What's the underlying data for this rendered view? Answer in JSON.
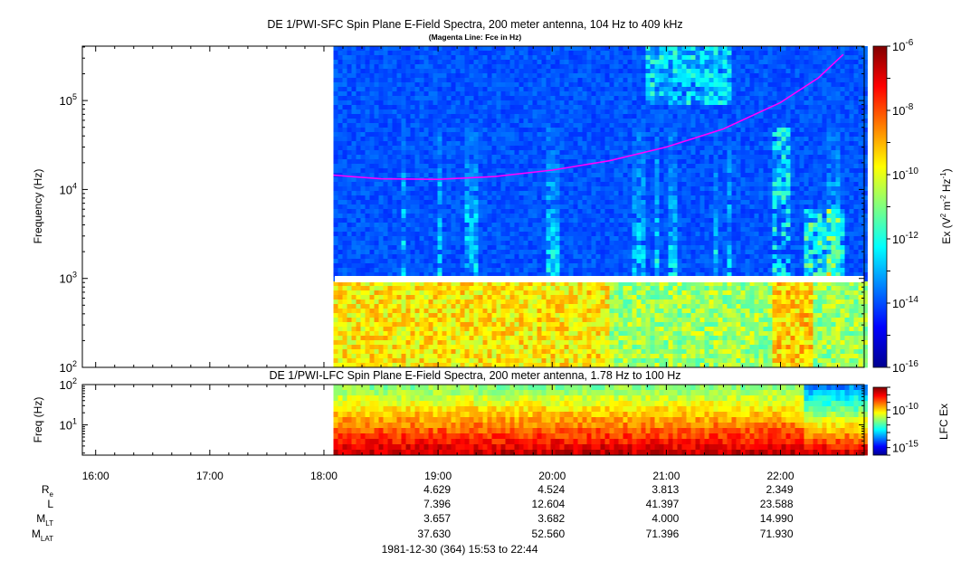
{
  "chart_data": [
    {
      "type": "heatmap",
      "title": "DE 1/PWI-SFC  Spin Plane E-Field Spectra, 200 meter antenna, 104 Hz to 409 kHz",
      "subtitle": "(Magenta Line: Fce in Hz)",
      "ylabel": "Frequency (Hz)",
      "yscale": "log",
      "ylim": [
        100,
        409000
      ],
      "yticks": [
        {
          "value": 100,
          "base": "10",
          "exp": "2"
        },
        {
          "value": 1000,
          "base": "10",
          "exp": "3"
        },
        {
          "value": 10000,
          "base": "10",
          "exp": "4"
        },
        {
          "value": 100000,
          "base": "10",
          "exp": "5"
        }
      ],
      "xlim": [
        "15:53",
        "22:44"
      ],
      "data_start": "18:05",
      "data_end": "22:44",
      "data_gap_hz": [
        870,
        1000
      ],
      "colorbar": {
        "label": "Ex (V² m⁻² Hz⁻¹)",
        "label_parts": {
          "a": "Ex (V",
          "b": "2",
          "c": " m",
          "d": "-2",
          "e": " Hz",
          "f": "-1",
          "g": ")"
        },
        "scale": "log",
        "range": [
          1e-16,
          1e-06
        ],
        "ticks": [
          {
            "value": 1e-06,
            "base": "10",
            "exp": "-6"
          },
          {
            "value": 1e-08,
            "base": "10",
            "exp": "-8"
          },
          {
            "value": 1e-10,
            "base": "10",
            "exp": "-10"
          },
          {
            "value": 1e-12,
            "base": "10",
            "exp": "-12"
          },
          {
            "value": 1e-14,
            "base": "10",
            "exp": "-14"
          },
          {
            "value": 1e-16,
            "base": "10",
            "exp": "-16"
          }
        ]
      },
      "fce_line": {
        "color": "#ff00ff",
        "points": [
          {
            "t": "18:05",
            "f": 14500
          },
          {
            "t": "18:30",
            "f": 13200
          },
          {
            "t": "19:00",
            "f": 13000
          },
          {
            "t": "19:30",
            "f": 14000
          },
          {
            "t": "20:00",
            "f": 16500
          },
          {
            "t": "20:30",
            "f": 21000
          },
          {
            "t": "21:00",
            "f": 30000
          },
          {
            "t": "21:30",
            "f": 48000
          },
          {
            "t": "22:00",
            "f": 95000
          },
          {
            "t": "22:20",
            "f": 180000
          },
          {
            "t": "22:33",
            "f": 330000
          }
        ]
      }
    },
    {
      "type": "heatmap",
      "title": "DE 1/PWI-LFC  Spin Plane E-Field Spectra, 200 meter antenna, 1.78 Hz to 100 Hz",
      "ylabel": "Freq (Hz)",
      "yscale": "log",
      "ylim": [
        1.78,
        100
      ],
      "yticks": [
        {
          "value": 10,
          "base": "10",
          "exp": "1"
        },
        {
          "value": 100,
          "base": "10",
          "exp": "2"
        }
      ],
      "xlim": [
        "15:53",
        "22:44"
      ],
      "data_start": "18:05",
      "data_end": "22:44",
      "colorbar": {
        "label": "LFC Ex",
        "scale": "log",
        "range": [
          1e-16,
          1e-07
        ],
        "ticks": [
          {
            "value": 1e-10,
            "base": "10",
            "exp": "-10"
          },
          {
            "value": 1e-15,
            "base": "10",
            "exp": "-15"
          }
        ]
      }
    }
  ],
  "time_axis": {
    "ticks": [
      {
        "t": "16:00",
        "label": "16:00"
      },
      {
        "t": "17:00",
        "label": "17:00"
      },
      {
        "t": "18:00",
        "label": "18:00"
      },
      {
        "t": "19:00",
        "label": "19:00"
      },
      {
        "t": "20:00",
        "label": "20:00"
      },
      {
        "t": "21:00",
        "label": "21:00"
      },
      {
        "t": "22:00",
        "label": "22:00"
      }
    ]
  },
  "ephemeris": {
    "rows": [
      {
        "name": "R",
        "sub": "e",
        "values": [
          "4.629",
          "4.524",
          "3.813",
          "2.349"
        ]
      },
      {
        "name": "L",
        "sub": "",
        "values": [
          "7.396",
          "12.604",
          "41.397",
          "23.588"
        ]
      },
      {
        "name": "M",
        "sub": "LT",
        "values": [
          "3.657",
          "3.682",
          "4.000",
          "14.990"
        ]
      },
      {
        "name": "M",
        "sub": "LAT",
        "values": [
          "37.630",
          "52.560",
          "71.396",
          "71.930"
        ]
      }
    ],
    "at": [
      "19:00",
      "20:00",
      "21:00",
      "22:00"
    ]
  },
  "footer": "1981-12-30 (364) 15:53 to 22:44"
}
